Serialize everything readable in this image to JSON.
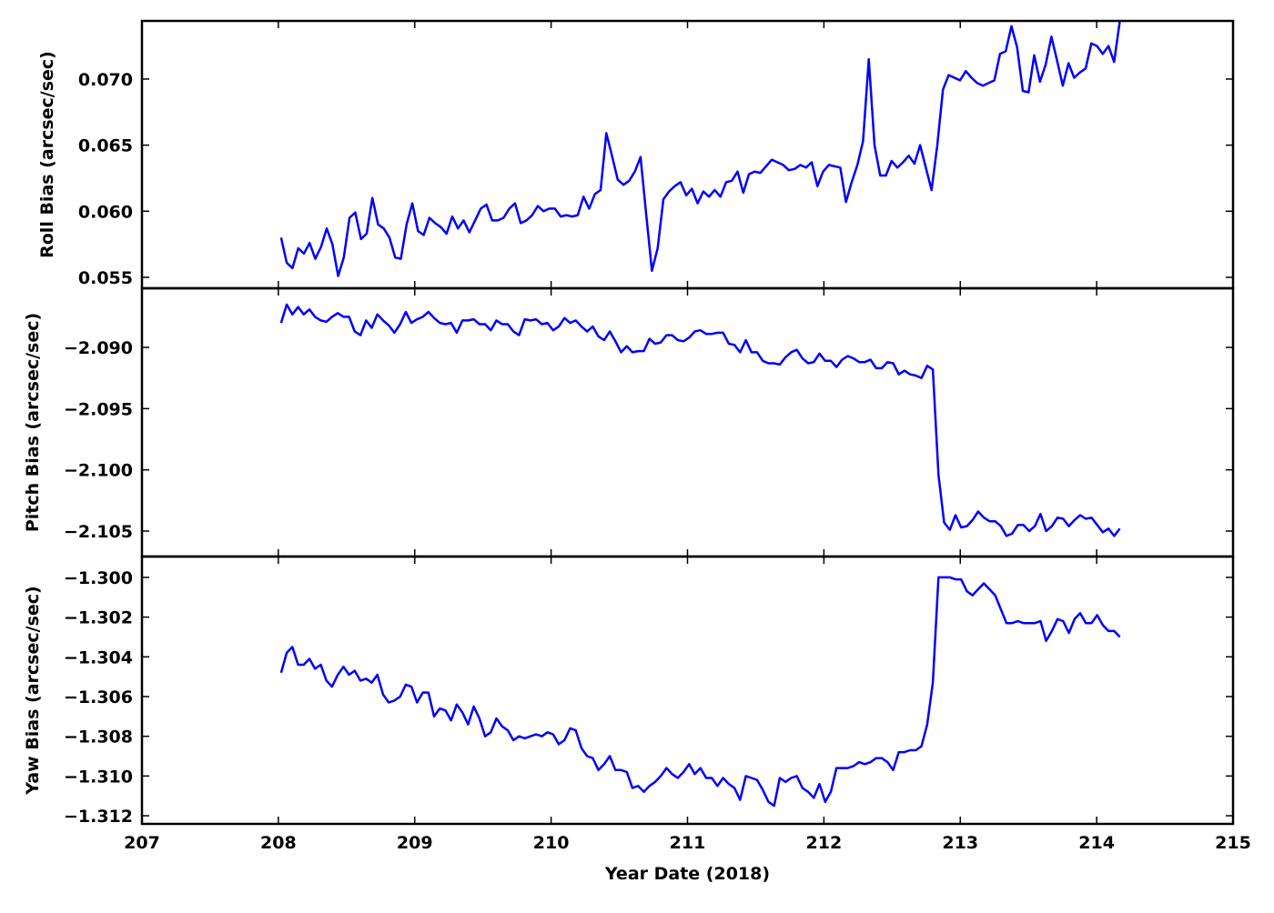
{
  "chart_data": [
    {
      "type": "line",
      "ylabel": "Roll Bias (arcsec/sec)",
      "ylim": [
        0.05417,
        0.0744
      ],
      "yticks": [
        0.055,
        0.06,
        0.065,
        0.07
      ],
      "ytick_labels": [
        "0.055",
        "0.060",
        "0.065",
        "0.070"
      ],
      "x_range": [
        208.02,
        214.17
      ],
      "color": "#0000ff",
      "values": [
        0.058,
        0.0561,
        0.0557,
        0.0572,
        0.0568,
        0.0576,
        0.0564,
        0.0573,
        0.0587,
        0.0575,
        0.0551,
        0.0565,
        0.0595,
        0.0599,
        0.0579,
        0.0583,
        0.061,
        0.059,
        0.0587,
        0.058,
        0.0565,
        0.0564,
        0.059,
        0.0606,
        0.0585,
        0.0582,
        0.0595,
        0.0591,
        0.0588,
        0.0583,
        0.0596,
        0.0587,
        0.0593,
        0.0584,
        0.0593,
        0.0602,
        0.0605,
        0.0593,
        0.0593,
        0.0595,
        0.0602,
        0.0606,
        0.0591,
        0.0593,
        0.0597,
        0.0604,
        0.06,
        0.0602,
        0.0602,
        0.0596,
        0.0597,
        0.0596,
        0.0597,
        0.0611,
        0.0602,
        0.0613,
        0.0616,
        0.0659,
        0.0642,
        0.0624,
        0.062,
        0.0623,
        0.063,
        0.0641,
        0.0597,
        0.0555,
        0.0572,
        0.0609,
        0.0615,
        0.0619,
        0.0622,
        0.0612,
        0.0617,
        0.0606,
        0.0615,
        0.0611,
        0.0616,
        0.0611,
        0.0622,
        0.0623,
        0.063,
        0.0614,
        0.0628,
        0.063,
        0.0629,
        0.0634,
        0.0639,
        0.0637,
        0.0635,
        0.0631,
        0.0632,
        0.0635,
        0.0633,
        0.0637,
        0.0619,
        0.063,
        0.0635,
        0.0634,
        0.0633,
        0.0607,
        0.0622,
        0.0635,
        0.0653,
        0.0715,
        0.065,
        0.0627,
        0.0627,
        0.0638,
        0.0633,
        0.0637,
        0.0642,
        0.0636,
        0.065,
        0.0633,
        0.0616,
        0.065,
        0.0692,
        0.0703,
        0.0701,
        0.0699,
        0.0706,
        0.0701,
        0.0697,
        0.0695,
        0.0697,
        0.0699,
        0.0719,
        0.0721,
        0.074,
        0.0724,
        0.0691,
        0.069,
        0.0718,
        0.0698,
        0.0711,
        0.0732,
        0.0714,
        0.0695,
        0.0712,
        0.0701,
        0.0705,
        0.0708,
        0.0727,
        0.0725,
        0.0719,
        0.0725,
        0.0713,
        0.0744
      ]
    },
    {
      "type": "line",
      "ylabel": "Pitch Bias (arcsec/sec)",
      "ylim": [
        -2.10708,
        -2.08517
      ],
      "yticks": [
        -2.09,
        -2.095,
        -2.1,
        -2.105
      ],
      "ytick_labels": [
        "−2.090",
        "−2.095",
        "−2.100",
        "−2.105"
      ],
      "x_range": [
        208.02,
        214.17
      ],
      "color": "#0000ff",
      "values": [
        -2.088,
        -2.0865,
        -2.0873,
        -2.0867,
        -2.0873,
        -2.0869,
        -2.0875,
        -2.0878,
        -2.0879,
        -2.0875,
        -2.0872,
        -2.0875,
        -2.0875,
        -2.0887,
        -2.089,
        -2.0878,
        -2.0884,
        -2.0873,
        -2.0878,
        -2.0882,
        -2.0888,
        -2.0881,
        -2.0871,
        -2.088,
        -2.0877,
        -2.0875,
        -2.0871,
        -2.0876,
        -2.088,
        -2.0881,
        -2.088,
        -2.0888,
        -2.0878,
        -2.0878,
        -2.0877,
        -2.0881,
        -2.0881,
        -2.0886,
        -2.0878,
        -2.0881,
        -2.0881,
        -2.0887,
        -2.089,
        -2.0877,
        -2.0878,
        -2.0877,
        -2.0881,
        -2.088,
        -2.0886,
        -2.0883,
        -2.0876,
        -2.088,
        -2.0878,
        -2.0883,
        -2.0887,
        -2.0883,
        -2.0891,
        -2.0894,
        -2.0887,
        -2.0895,
        -2.0904,
        -2.0899,
        -2.0904,
        -2.0903,
        -2.0903,
        -2.0893,
        -2.0897,
        -2.0896,
        -2.089,
        -2.089,
        -2.0894,
        -2.0895,
        -2.0892,
        -2.0887,
        -2.0886,
        -2.0889,
        -2.0889,
        -2.0888,
        -2.0888,
        -2.0897,
        -2.0898,
        -2.0904,
        -2.0894,
        -2.0904,
        -2.0904,
        -2.0911,
        -2.0913,
        -2.0913,
        -2.0914,
        -2.0908,
        -2.0904,
        -2.0902,
        -2.0909,
        -2.0913,
        -2.0912,
        -2.0905,
        -2.0911,
        -2.0911,
        -2.0916,
        -2.091,
        -2.0907,
        -2.0909,
        -2.0912,
        -2.0912,
        -2.091,
        -2.0917,
        -2.0917,
        -2.0912,
        -2.0913,
        -2.0922,
        -2.0919,
        -2.0922,
        -2.0923,
        -2.0925,
        -2.0915,
        -2.0918,
        -2.1004,
        -2.1043,
        -2.1049,
        -2.1037,
        -2.1047,
        -2.1046,
        -2.1041,
        -2.1034,
        -2.1039,
        -2.1042,
        -2.1042,
        -2.1046,
        -2.1054,
        -2.1052,
        -2.1045,
        -2.1045,
        -2.105,
        -2.1046,
        -2.1036,
        -2.105,
        -2.1046,
        -2.1039,
        -2.104,
        -2.1046,
        -2.1041,
        -2.1037,
        -2.104,
        -2.1039,
        -2.1045,
        -2.1051,
        -2.1048,
        -2.1054,
        -2.1048
      ]
    },
    {
      "type": "line",
      "ylabel": "Yaw Bias (arcsec/sec)",
      "xlabel": "Year Date (2018)",
      "ylim": [
        -1.31241,
        -1.29895
      ],
      "yticks": [
        -1.3,
        -1.302,
        -1.304,
        -1.306,
        -1.308,
        -1.31,
        -1.312
      ],
      "ytick_labels": [
        "−1.300",
        "−1.302",
        "−1.304",
        "−1.306",
        "−1.308",
        "−1.310",
        "−1.312"
      ],
      "xlim": [
        207,
        215
      ],
      "xticks": [
        207,
        208,
        209,
        210,
        211,
        212,
        213,
        214,
        215
      ],
      "xtick_labels": [
        "207",
        "208",
        "209",
        "210",
        "211",
        "212",
        "213",
        "214",
        "215"
      ],
      "x_range": [
        208.02,
        214.17
      ],
      "color": "#0000ff",
      "values": [
        -1.3048,
        -1.3038,
        -1.3035,
        -1.3044,
        -1.3044,
        -1.3041,
        -1.3046,
        -1.3044,
        -1.3052,
        -1.3055,
        -1.3049,
        -1.3045,
        -1.3049,
        -1.3047,
        -1.3052,
        -1.3051,
        -1.3053,
        -1.3049,
        -1.3059,
        -1.3063,
        -1.3062,
        -1.306,
        -1.3054,
        -1.3055,
        -1.3063,
        -1.3058,
        -1.3058,
        -1.307,
        -1.3066,
        -1.3067,
        -1.3072,
        -1.3064,
        -1.3068,
        -1.3074,
        -1.3065,
        -1.3071,
        -1.308,
        -1.3078,
        -1.3071,
        -1.3075,
        -1.3077,
        -1.3082,
        -1.308,
        -1.3081,
        -1.308,
        -1.3079,
        -1.308,
        -1.3078,
        -1.3079,
        -1.3084,
        -1.3082,
        -1.3076,
        -1.3077,
        -1.3086,
        -1.309,
        -1.3091,
        -1.3097,
        -1.3094,
        -1.309,
        -1.3097,
        -1.3097,
        -1.3098,
        -1.3106,
        -1.3105,
        -1.3108,
        -1.3105,
        -1.3103,
        -1.31,
        -1.3096,
        -1.3099,
        -1.3101,
        -1.3098,
        -1.3094,
        -1.3099,
        -1.3096,
        -1.3101,
        -1.3101,
        -1.3105,
        -1.3101,
        -1.3104,
        -1.3106,
        -1.3112,
        -1.31,
        -1.3101,
        -1.3102,
        -1.3107,
        -1.3113,
        -1.3115,
        -1.3101,
        -1.3103,
        -1.3101,
        -1.31,
        -1.3106,
        -1.3108,
        -1.3111,
        -1.3104,
        -1.3113,
        -1.3108,
        -1.3096,
        -1.3096,
        -1.3096,
        -1.3095,
        -1.3093,
        -1.3094,
        -1.3093,
        -1.3091,
        -1.3091,
        -1.3093,
        -1.3097,
        -1.3088,
        -1.3088,
        -1.3087,
        -1.3087,
        -1.3085,
        -1.3074,
        -1.3053,
        -1.3,
        -1.3,
        -1.3,
        -1.3001,
        -1.3001,
        -1.3007,
        -1.3009,
        -1.3006,
        -1.3003,
        -1.3006,
        -1.3009,
        -1.3016,
        -1.3023,
        -1.3023,
        -1.3022,
        -1.3023,
        -1.3023,
        -1.3023,
        -1.3022,
        -1.3032,
        -1.3027,
        -1.3021,
        -1.3022,
        -1.3028,
        -1.3021,
        -1.3018,
        -1.3023,
        -1.3023,
        -1.3019,
        -1.3024,
        -1.3027,
        -1.3027,
        -1.303
      ]
    }
  ]
}
